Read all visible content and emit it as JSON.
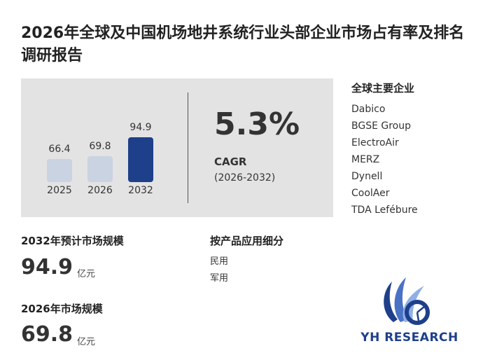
{
  "title": "2026年全球及中国机场地井系统行业头部企业市场占有率及排名调研报告",
  "bars": [
    {
      "year": "2025",
      "value": 66.4,
      "label": "66.4",
      "color": "#c9d3e2"
    },
    {
      "year": "2026",
      "value": 69.8,
      "label": "69.8",
      "color": "#c9d3e2"
    },
    {
      "year": "2032",
      "value": 94.9,
      "label": "94.9",
      "color": "#1e3f8a"
    }
  ],
  "cagr": {
    "value": "5.3%",
    "label": "CAGR",
    "range": "(2026-2032)"
  },
  "companies": {
    "title": "全球主要企业",
    "items": [
      "Dabico",
      "BGSE Group",
      "ElectroAir",
      "MERZ",
      "Dynell",
      "CoolAer",
      "TDA Lefébure"
    ]
  },
  "forecast": {
    "label": "2032年预计市场规模",
    "value": "94.9",
    "unit": "亿元"
  },
  "current": {
    "label": "2026年市场规模",
    "value": "69.8",
    "unit": "亿元"
  },
  "segments": {
    "title": "按产品应用细分",
    "items": [
      "民用",
      "军用"
    ]
  },
  "logo": {
    "text": "YH RESEARCH"
  }
}
